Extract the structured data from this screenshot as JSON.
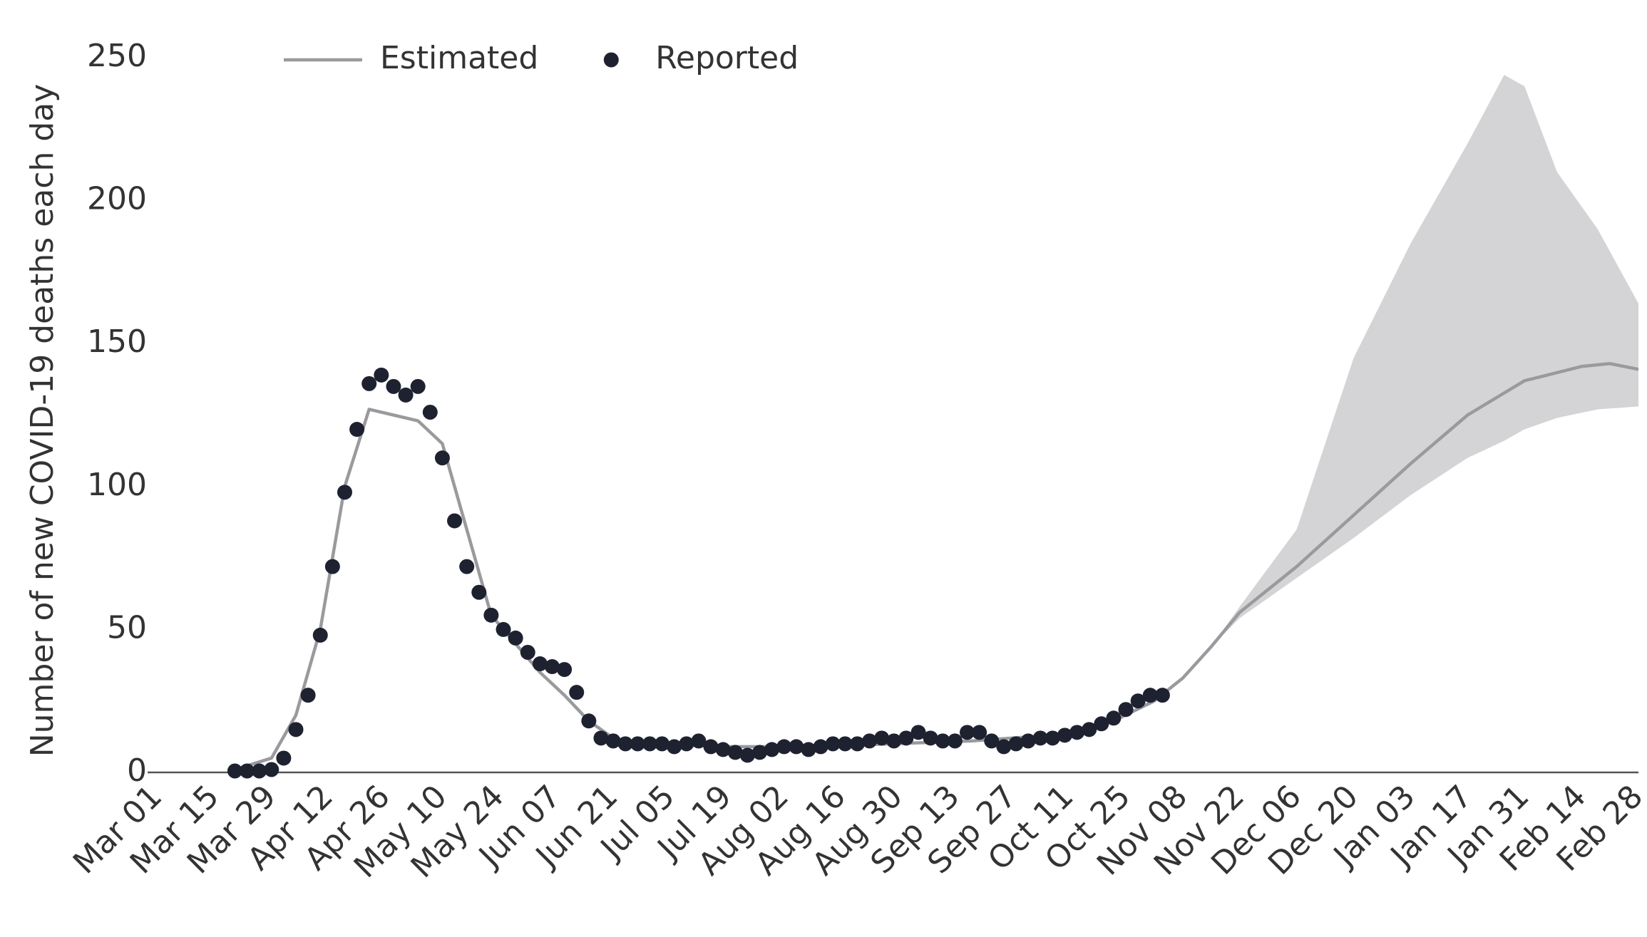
{
  "chart_data": {
    "type": "line",
    "y_label": "Number of new COVID-19 deaths each day",
    "xlim": [
      0,
      364
    ],
    "xticks": [
      {
        "value": 0,
        "label": "Mar 01"
      },
      {
        "value": 14,
        "label": "Mar 15"
      },
      {
        "value": 28,
        "label": "Mar 29"
      },
      {
        "value": 42,
        "label": "Apr 12"
      },
      {
        "value": 56,
        "label": "Apr 26"
      },
      {
        "value": 70,
        "label": "May 10"
      },
      {
        "value": 84,
        "label": "May 24"
      },
      {
        "value": 98,
        "label": "Jun 07"
      },
      {
        "value": 112,
        "label": "Jun 21"
      },
      {
        "value": 126,
        "label": "Jul 05"
      },
      {
        "value": 140,
        "label": "Jul 19"
      },
      {
        "value": 154,
        "label": "Aug 02"
      },
      {
        "value": 168,
        "label": "Aug 16"
      },
      {
        "value": 182,
        "label": "Aug 30"
      },
      {
        "value": 196,
        "label": "Sep 13"
      },
      {
        "value": 210,
        "label": "Sep 27"
      },
      {
        "value": 224,
        "label": "Oct 11"
      },
      {
        "value": 238,
        "label": "Oct 25"
      },
      {
        "value": 252,
        "label": "Nov 08"
      },
      {
        "value": 266,
        "label": "Nov 22"
      },
      {
        "value": 280,
        "label": "Dec 06"
      },
      {
        "value": 294,
        "label": "Dec 20"
      },
      {
        "value": 308,
        "label": "Jan 03"
      },
      {
        "value": 322,
        "label": "Jan 17"
      },
      {
        "value": 336,
        "label": "Jan 31"
      },
      {
        "value": 350,
        "label": "Feb 14"
      },
      {
        "value": 364,
        "label": "Feb 28"
      }
    ],
    "ylim": [
      0,
      250
    ],
    "yticks": [
      0,
      50,
      100,
      150,
      200,
      250
    ],
    "grid": false,
    "legend": "top-left",
    "band": {
      "color": "#d4d4d6",
      "x": [
        245,
        252,
        259,
        266,
        280,
        294,
        308,
        322,
        331,
        336,
        344,
        354,
        364
      ],
      "upper": [
        25,
        33,
        44,
        58,
        85,
        145,
        185,
        220,
        244,
        240,
        210,
        190,
        164
      ],
      "lower": [
        25,
        33,
        44,
        54,
        68,
        82,
        97,
        110,
        116,
        120,
        124,
        127,
        128
      ]
    },
    "series": [
      {
        "name": "Estimated",
        "color": "#9a9a9e",
        "mode": "line",
        "x": [
          19,
          28,
          34,
          40,
          46,
          52,
          58,
          64,
          70,
          76,
          82,
          88,
          94,
          100,
          106,
          112,
          120,
          140,
          160,
          180,
          200,
          220,
          235,
          245,
          252,
          259,
          266,
          280,
          294,
          308,
          322,
          336,
          350,
          357,
          364
        ],
        "values": [
          1,
          5,
          20,
          50,
          100,
          127,
          125,
          123,
          115,
          85,
          55,
          45,
          35,
          27,
          18,
          12,
          10,
          9,
          9,
          10,
          11,
          13,
          18,
          25,
          33,
          44,
          56,
          72,
          90,
          108,
          125,
          137,
          142,
          143,
          141
        ]
      },
      {
        "name": "Reported",
        "color": "#1e2230",
        "mode": "markers",
        "x": [
          19,
          22,
          25,
          28,
          31,
          34,
          37,
          40,
          43,
          46,
          49,
          52,
          55,
          58,
          61,
          64,
          67,
          70,
          73,
          76,
          79,
          82,
          85,
          88,
          91,
          94,
          97,
          100,
          103,
          106,
          109,
          112,
          115,
          118,
          121,
          124,
          127,
          130,
          133,
          136,
          139,
          142,
          145,
          148,
          151,
          154,
          157,
          160,
          163,
          166,
          169,
          172,
          175,
          178,
          181,
          184,
          187,
          190,
          193,
          196,
          199,
          202,
          205,
          208,
          211,
          214,
          217,
          220,
          223,
          226,
          229,
          232,
          235,
          238,
          241,
          244,
          247
        ],
        "values": [
          0.5,
          0.5,
          0.5,
          1,
          5,
          15,
          27,
          48,
          72,
          98,
          120,
          136,
          139,
          135,
          132,
          135,
          126,
          110,
          88,
          72,
          63,
          55,
          50,
          47,
          42,
          38,
          37,
          36,
          28,
          18,
          12,
          11,
          10,
          10,
          10,
          10,
          9,
          10,
          11,
          9,
          8,
          7,
          6,
          7,
          8,
          9,
          9,
          8,
          9,
          10,
          10,
          10,
          11,
          12,
          11,
          12,
          14,
          12,
          11,
          11,
          14,
          14,
          11,
          9,
          10,
          11,
          12,
          12,
          13,
          14,
          15,
          17,
          19,
          22,
          25,
          27,
          27
        ]
      }
    ]
  }
}
